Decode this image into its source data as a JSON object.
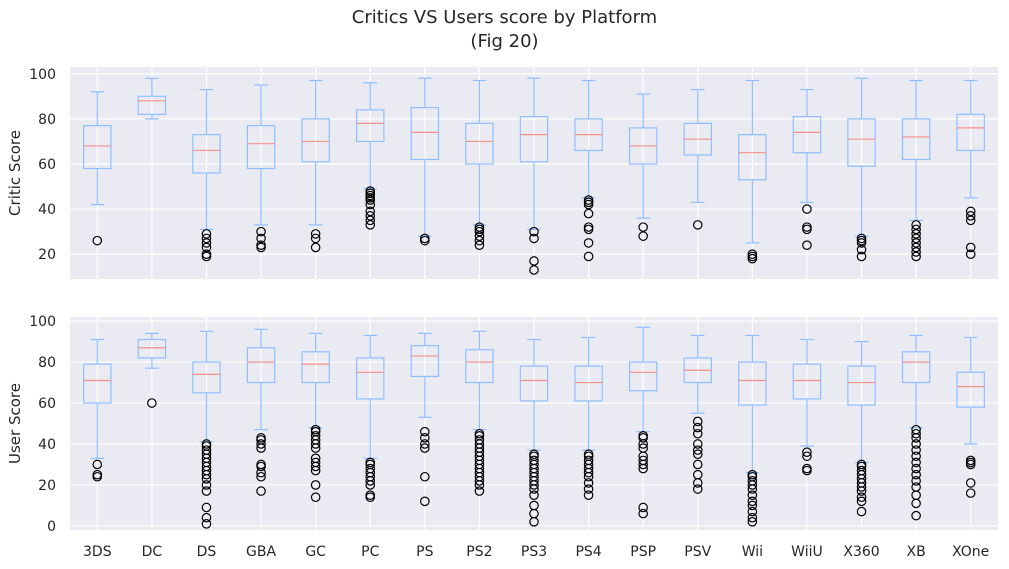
{
  "figure": {
    "title_line1": "Critics VS Users score by Platform",
    "title_line2": "(Fig 20)"
  },
  "colors": {
    "background": "#eaeaf2",
    "grid": "#ffffff",
    "box": "#8fbfff",
    "median": "#f4908a",
    "flier": "#000000",
    "text": "#262626"
  },
  "chart_data": [
    {
      "type": "box",
      "ylabel": "Critic Score",
      "xlabel": "",
      "ylim": [
        9,
        103
      ],
      "yticks": [
        20,
        40,
        60,
        80,
        100
      ],
      "grid": true,
      "categories": [
        "3DS",
        "DC",
        "DS",
        "GBA",
        "GC",
        "PC",
        "PS",
        "PS2",
        "PS3",
        "PS4",
        "PSP",
        "PSV",
        "Wii",
        "WiiU",
        "X360",
        "XB",
        "XOne"
      ],
      "boxes": [
        {
          "min": 42,
          "q1": 58,
          "median": 68,
          "q3": 77,
          "max": 92,
          "fliers": [
            26
          ]
        },
        {
          "min": 80,
          "q1": 82,
          "median": 88,
          "q3": 90,
          "max": 98,
          "fliers": []
        },
        {
          "min": 31,
          "q1": 56,
          "median": 66,
          "q3": 73,
          "max": 93,
          "fliers": [
            19,
            20,
            23,
            25,
            27,
            29
          ]
        },
        {
          "min": 33,
          "q1": 58,
          "median": 69,
          "q3": 77,
          "max": 95,
          "fliers": [
            23,
            24,
            27,
            30
          ]
        },
        {
          "min": 33,
          "q1": 61,
          "median": 70,
          "q3": 80,
          "max": 97,
          "fliers": [
            23,
            27,
            29
          ]
        },
        {
          "min": 49,
          "q1": 70,
          "median": 78,
          "q3": 84,
          "max": 96,
          "fliers": [
            33,
            35,
            37,
            39,
            42,
            44,
            45,
            46,
            47,
            48
          ]
        },
        {
          "min": 28,
          "q1": 62,
          "median": 74,
          "q3": 85,
          "max": 98,
          "fliers": [
            26,
            27
          ]
        },
        {
          "min": 33,
          "q1": 60,
          "median": 70,
          "q3": 78,
          "max": 97,
          "fliers": [
            24,
            26,
            28,
            30,
            31,
            32
          ]
        },
        {
          "min": 31,
          "q1": 61,
          "median": 73,
          "q3": 81,
          "max": 98,
          "fliers": [
            13,
            17,
            27,
            30
          ]
        },
        {
          "min": 45,
          "q1": 66,
          "median": 73,
          "q3": 80,
          "max": 97,
          "fliers": [
            19,
            25,
            31,
            32,
            38,
            42,
            43,
            44
          ]
        },
        {
          "min": 36,
          "q1": 60,
          "median": 68,
          "q3": 76,
          "max": 91,
          "fliers": [
            28,
            32
          ]
        },
        {
          "min": 43,
          "q1": 64,
          "median": 71,
          "q3": 78,
          "max": 93,
          "fliers": [
            33
          ]
        },
        {
          "min": 25,
          "q1": 53,
          "median": 65,
          "q3": 73,
          "max": 97,
          "fliers": [
            18,
            19,
            20
          ]
        },
        {
          "min": 43,
          "q1": 65,
          "median": 74,
          "q3": 81,
          "max": 93,
          "fliers": [
            24,
            31,
            32,
            40
          ]
        },
        {
          "min": 28,
          "q1": 59,
          "median": 71,
          "q3": 80,
          "max": 98,
          "fliers": [
            19,
            22,
            25,
            26,
            27
          ]
        },
        {
          "min": 35,
          "q1": 62,
          "median": 72,
          "q3": 80,
          "max": 97,
          "fliers": [
            19,
            21,
            23,
            25,
            27,
            29,
            31,
            33
          ]
        },
        {
          "min": 45,
          "q1": 66,
          "median": 76,
          "q3": 82,
          "max": 97,
          "fliers": [
            20,
            23,
            35,
            37,
            39
          ]
        }
      ]
    },
    {
      "type": "box",
      "ylabel": "User Score",
      "xlabel": "",
      "ylim": [
        -2,
        102
      ],
      "yticks": [
        0,
        20,
        40,
        60,
        80,
        100
      ],
      "grid": true,
      "categories": [
        "3DS",
        "DC",
        "DS",
        "GBA",
        "GC",
        "PC",
        "PS",
        "PS2",
        "PS3",
        "PS4",
        "PSP",
        "PSV",
        "Wii",
        "WiiU",
        "X360",
        "XB",
        "XOne"
      ],
      "boxes": [
        {
          "min": 33,
          "q1": 60,
          "median": 71,
          "q3": 79,
          "max": 91,
          "fliers": [
            24,
            25,
            30
          ]
        },
        {
          "min": 77,
          "q1": 82,
          "median": 87,
          "q3": 91,
          "max": 94,
          "fliers": [
            60
          ]
        },
        {
          "min": 41,
          "q1": 65,
          "median": 74,
          "q3": 80,
          "max": 95,
          "fliers": [
            1,
            4,
            9,
            17,
            20,
            23,
            25,
            27,
            29,
            31,
            33,
            35,
            37,
            39,
            40
          ]
        },
        {
          "min": 47,
          "q1": 70,
          "median": 80,
          "q3": 87,
          "max": 96,
          "fliers": [
            17,
            24,
            26,
            29,
            30,
            38,
            40,
            42,
            43
          ]
        },
        {
          "min": 48,
          "q1": 70,
          "median": 79,
          "q3": 85,
          "max": 94,
          "fliers": [
            14,
            20,
            27,
            29,
            31,
            33,
            38,
            40,
            42,
            44,
            46,
            47
          ]
        },
        {
          "min": 33,
          "q1": 62,
          "median": 75,
          "q3": 82,
          "max": 93,
          "fliers": [
            14,
            15,
            20,
            22,
            24,
            26,
            28,
            30,
            31
          ]
        },
        {
          "min": 53,
          "q1": 73,
          "median": 83,
          "q3": 88,
          "max": 94,
          "fliers": [
            12,
            24,
            38,
            40,
            43,
            46
          ]
        },
        {
          "min": 47,
          "q1": 70,
          "median": 80,
          "q3": 86,
          "max": 95,
          "fliers": [
            17,
            20,
            22,
            24,
            26,
            28,
            30,
            32,
            34,
            36,
            38,
            40,
            42,
            44,
            45
          ]
        },
        {
          "min": 37,
          "q1": 61,
          "median": 71,
          "q3": 78,
          "max": 91,
          "fliers": [
            2,
            6,
            10,
            15,
            18,
            20,
            22,
            24,
            26,
            28,
            30,
            32,
            34,
            35
          ]
        },
        {
          "min": 37,
          "q1": 61,
          "median": 70,
          "q3": 78,
          "max": 92,
          "fliers": [
            15,
            18,
            21,
            24,
            26,
            28,
            30,
            32,
            34,
            35
          ]
        },
        {
          "min": 46,
          "q1": 66,
          "median": 75,
          "q3": 80,
          "max": 97,
          "fliers": [
            6,
            9,
            28,
            30,
            32,
            34,
            38,
            40,
            43,
            44
          ]
        },
        {
          "min": 55,
          "q1": 70,
          "median": 76,
          "q3": 82,
          "max": 93,
          "fliers": [
            18,
            21,
            25,
            30,
            35,
            37,
            40,
            45,
            48,
            51
          ]
        },
        {
          "min": 26,
          "q1": 59,
          "median": 71,
          "q3": 80,
          "max": 93,
          "fliers": [
            2,
            4,
            7,
            10,
            12,
            15,
            18,
            20,
            22,
            24,
            25
          ]
        },
        {
          "min": 39,
          "q1": 62,
          "median": 71,
          "q3": 79,
          "max": 91,
          "fliers": [
            27,
            28,
            34,
            36
          ]
        },
        {
          "min": 31,
          "q1": 59,
          "median": 70,
          "q3": 78,
          "max": 90,
          "fliers": [
            7,
            12,
            14,
            17,
            19,
            21,
            23,
            25,
            27,
            29,
            30
          ]
        },
        {
          "min": 48,
          "q1": 70,
          "median": 80,
          "q3": 85,
          "max": 93,
          "fliers": [
            5,
            11,
            15,
            19,
            22,
            25,
            28,
            31,
            34,
            37,
            40,
            43,
            45,
            47
          ]
        },
        {
          "min": 40,
          "q1": 58,
          "median": 68,
          "q3": 75,
          "max": 92,
          "fliers": [
            16,
            21,
            30,
            31,
            32
          ]
        }
      ]
    }
  ]
}
